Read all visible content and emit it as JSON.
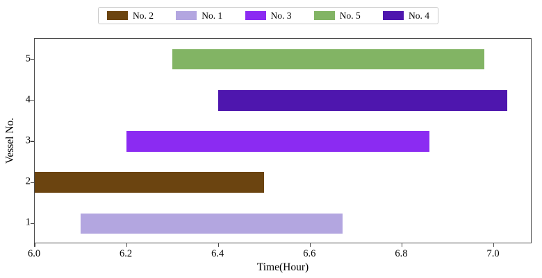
{
  "figure": {
    "xlabel": "Time(Hour)",
    "ylabel": "Vessel No."
  },
  "chart_data": {
    "type": "bar",
    "orientation": "horizontal",
    "title": "",
    "xlabel": "Time(Hour)",
    "ylabel": "Vessel No.",
    "xlim": [
      6.0,
      7.084
    ],
    "ylim": [
      0.5,
      5.5
    ],
    "x_ticks": [
      6.0,
      6.2,
      6.4,
      6.6,
      6.8,
      7.0
    ],
    "x_tick_labels": [
      "6.0",
      "6.2",
      "6.4",
      "6.6",
      "6.8",
      "7.0"
    ],
    "y_ticks": [
      1,
      2,
      3,
      4,
      5
    ],
    "y_tick_labels": [
      "1",
      "2",
      "3",
      "4",
      "5"
    ],
    "bar_height_units": 0.5,
    "grid": false,
    "legend": {
      "position": "top-center",
      "entries": [
        {
          "label": "No. 2",
          "color": "#6B4410"
        },
        {
          "label": "No. 1",
          "color": "#B3A6E0"
        },
        {
          "label": "No. 3",
          "color": "#8B2BF2"
        },
        {
          "label": "No. 5",
          "color": "#82B464"
        },
        {
          "label": "No. 4",
          "color": "#4E16AE"
        }
      ]
    },
    "bars": [
      {
        "vessel": 1,
        "label": "No. 1",
        "start": 6.1,
        "end": 6.67,
        "color": "#B3A6E0"
      },
      {
        "vessel": 2,
        "label": "No. 2",
        "start": 6.0,
        "end": 6.5,
        "color": "#6B4410"
      },
      {
        "vessel": 3,
        "label": "No. 3",
        "start": 6.2,
        "end": 6.86,
        "color": "#8B2BF2"
      },
      {
        "vessel": 4,
        "label": "No. 4",
        "start": 6.4,
        "end": 7.03,
        "color": "#4E16AE"
      },
      {
        "vessel": 5,
        "label": "No. 5",
        "start": 6.3,
        "end": 6.98,
        "color": "#82B464"
      }
    ]
  }
}
